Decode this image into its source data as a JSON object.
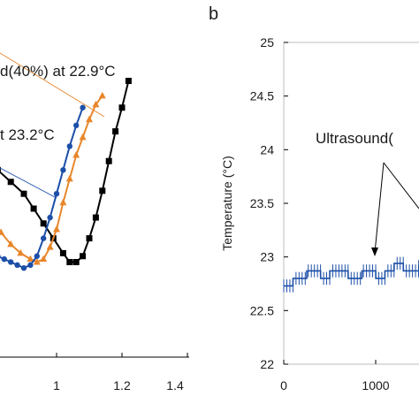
{
  "chart_data": [
    {
      "type": "line",
      "title": "",
      "xlabel": "",
      "ylabel": "",
      "xlim": [
        0.6,
        1.4
      ],
      "x_ticks": [
        "1",
        "1.2",
        "1.4"
      ],
      "grid": false,
      "annotations": [
        {
          "text": "d(40%) at 22.9°C",
          "color": "#e8862a"
        },
        {
          "text": "t 23.2°C",
          "color": "#1c4fa8"
        }
      ],
      "series": [
        {
          "color": "#000000",
          "marker": "square",
          "x": [
            0.6,
            0.62,
            0.66,
            0.7,
            0.74,
            0.78,
            0.82,
            0.86,
            0.9,
            0.93,
            0.96,
            0.99,
            1.02,
            1.04,
            1.06,
            1.08,
            1.1,
            1.12,
            1.14,
            1.16,
            1.18,
            1.2,
            1.22
          ],
          "y": [
            0.56,
            0.57,
            0.6,
            0.64,
            0.66,
            0.65,
            0.63,
            0.59,
            0.55,
            0.5,
            0.45,
            0.4,
            0.35,
            0.32,
            0.32,
            0.34,
            0.4,
            0.47,
            0.56,
            0.66,
            0.76,
            0.84,
            0.93
          ]
        },
        {
          "color": "#e8862a",
          "marker": "triangle",
          "x": [
            0.6,
            0.63,
            0.67,
            0.71,
            0.75,
            0.79,
            0.83,
            0.86,
            0.89,
            0.92,
            0.94,
            0.96,
            0.98,
            1.0,
            1.02,
            1.04,
            1.06,
            1.08,
            1.1,
            1.12,
            1.14
          ],
          "y": [
            0.51,
            0.52,
            0.53,
            0.51,
            0.49,
            0.46,
            0.42,
            0.38,
            0.35,
            0.33,
            0.32,
            0.33,
            0.37,
            0.43,
            0.52,
            0.6,
            0.68,
            0.74,
            0.8,
            0.85,
            0.88
          ]
        },
        {
          "color": "#1c4fa8",
          "marker": "circle",
          "x": [
            0.6,
            0.62,
            0.64,
            0.66,
            0.68,
            0.7,
            0.72,
            0.74,
            0.76,
            0.78,
            0.8,
            0.82,
            0.84,
            0.86,
            0.88,
            0.9,
            0.92,
            0.94,
            0.96,
            0.98,
            1.0,
            1.02,
            1.04,
            1.06,
            1.08
          ],
          "y": [
            0.52,
            0.5,
            0.47,
            0.44,
            0.42,
            0.4,
            0.39,
            0.38,
            0.37,
            0.36,
            0.35,
            0.34,
            0.33,
            0.32,
            0.31,
            0.3,
            0.31,
            0.34,
            0.4,
            0.47,
            0.55,
            0.63,
            0.71,
            0.78,
            0.84
          ]
        }
      ]
    },
    {
      "type": "line",
      "panel_label": "b",
      "title": "",
      "xlabel": "",
      "ylabel": "Temperature (°C)",
      "xlim": [
        0,
        2000
      ],
      "ylim": [
        22,
        25
      ],
      "x_ticks": [
        "0",
        "1000"
      ],
      "y_ticks": [
        "22",
        "22.5",
        "23",
        "23.5",
        "24",
        "24.5",
        "25"
      ],
      "grid": false,
      "annotation": {
        "text": "Ultrasound("
      },
      "series": [
        {
          "color": "#1c4fa8",
          "x": [
            0,
            100,
            101,
            250,
            251,
            400,
            401,
            500,
            501,
            700,
            701,
            850,
            851,
            1000,
            1001,
            1100,
            1101,
            1200,
            1201,
            1300,
            1301,
            1500,
            1501,
            1700,
            1701,
            2000
          ],
          "y": [
            22.73,
            22.73,
            22.8,
            22.8,
            22.87,
            22.87,
            22.8,
            22.8,
            22.87,
            22.87,
            22.8,
            22.8,
            22.87,
            22.87,
            22.8,
            22.8,
            22.87,
            22.87,
            22.94,
            22.94,
            22.87,
            22.87,
            22.94,
            22.94,
            22.97,
            22.97
          ]
        }
      ]
    }
  ]
}
